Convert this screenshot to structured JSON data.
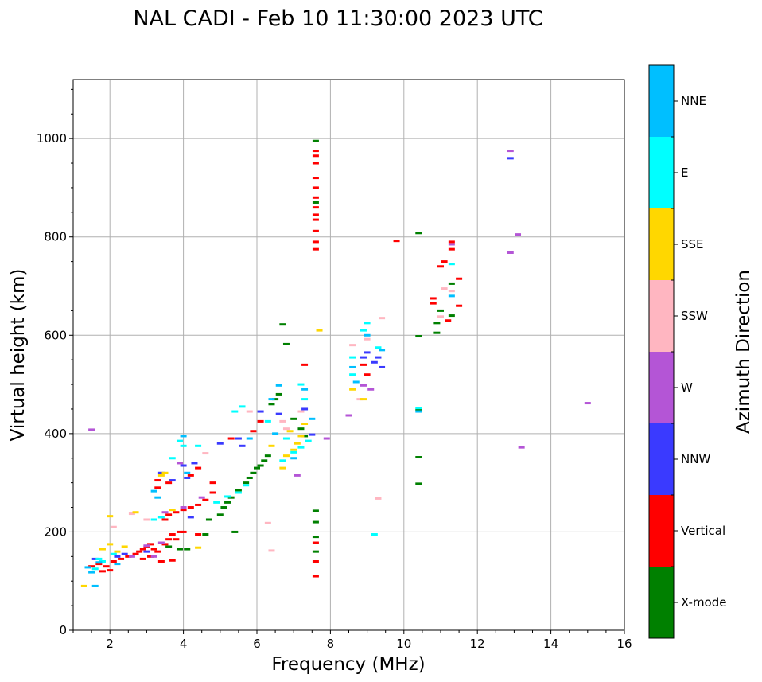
{
  "chart_data": {
    "type": "scatter",
    "title": "NAL CADI - Feb 10 11:30:00 2023 UTC",
    "xlabel": "Frequency (MHz)",
    "ylabel": "Virtual height (km)",
    "xlim": [
      1,
      16
    ],
    "ylim": [
      0,
      1120
    ],
    "xticks": [
      2,
      4,
      6,
      8,
      10,
      12,
      14,
      16
    ],
    "yticks": [
      0,
      200,
      400,
      600,
      800,
      1000
    ],
    "grid": true,
    "colorbar": {
      "label": "Azimuth Direction",
      "categories": [
        "X-mode",
        "Vertical",
        "NNW",
        "W",
        "SSW",
        "SSE",
        "E",
        "NNE"
      ],
      "colors": [
        "#008000",
        "#ff0000",
        "#3a3aff",
        "#b455d6",
        "#ffb6c1",
        "#ffd700",
        "#00ffff",
        "#00bfff"
      ]
    },
    "series": [
      {
        "name": "X-mode",
        "points": [
          [
            5.1,
            250
          ],
          [
            5.3,
            270
          ],
          [
            5.5,
            285
          ],
          [
            5.7,
            300
          ],
          [
            5.8,
            310
          ],
          [
            5.9,
            320
          ],
          [
            6.0,
            330
          ],
          [
            6.1,
            335
          ],
          [
            6.2,
            345
          ],
          [
            6.3,
            355
          ],
          [
            5.0,
            235
          ],
          [
            5.2,
            260
          ],
          [
            6.4,
            460
          ],
          [
            6.5,
            470
          ],
          [
            6.6,
            480
          ],
          [
            6.8,
            582
          ],
          [
            6.7,
            622
          ],
          [
            7.0,
            430
          ],
          [
            7.2,
            410
          ],
          [
            7.3,
            395
          ],
          [
            7.6,
            243
          ],
          [
            7.6,
            220
          ],
          [
            7.6,
            190
          ],
          [
            7.6,
            160
          ],
          [
            7.6,
            995
          ],
          [
            7.6,
            870
          ],
          [
            10.4,
            598
          ],
          [
            10.4,
            448
          ],
          [
            10.4,
            352
          ],
          [
            10.4,
            298
          ],
          [
            10.4,
            808
          ],
          [
            10.9,
            605
          ],
          [
            10.9,
            625
          ],
          [
            11.0,
            650
          ],
          [
            11.3,
            640
          ],
          [
            11.3,
            705
          ],
          [
            3.6,
            170
          ],
          [
            3.9,
            165
          ],
          [
            4.1,
            165
          ],
          [
            4.6,
            195
          ],
          [
            4.7,
            225
          ],
          [
            5.4,
            200
          ]
        ]
      },
      {
        "name": "Vertical",
        "points": [
          [
            1.5,
            130
          ],
          [
            1.7,
            135
          ],
          [
            1.9,
            130
          ],
          [
            2.1,
            140
          ],
          [
            2.3,
            145
          ],
          [
            2.5,
            150
          ],
          [
            2.7,
            155
          ],
          [
            2.8,
            160
          ],
          [
            2.9,
            165
          ],
          [
            3.0,
            170
          ],
          [
            3.1,
            175
          ],
          [
            3.2,
            165
          ],
          [
            3.3,
            160
          ],
          [
            3.1,
            150
          ],
          [
            2.9,
            145
          ],
          [
            3.5,
            175
          ],
          [
            3.6,
            185
          ],
          [
            3.7,
            195
          ],
          [
            3.8,
            185
          ],
          [
            3.9,
            200
          ],
          [
            4.0,
            200
          ],
          [
            3.5,
            225
          ],
          [
            3.6,
            235
          ],
          [
            3.8,
            240
          ],
          [
            4.0,
            245
          ],
          [
            4.2,
            250
          ],
          [
            4.4,
            255
          ],
          [
            4.6,
            265
          ],
          [
            4.8,
            280
          ],
          [
            3.3,
            290
          ],
          [
            3.3,
            305
          ],
          [
            3.6,
            300
          ],
          [
            4.2,
            315
          ],
          [
            4.4,
            330
          ],
          [
            4.8,
            300
          ],
          [
            5.3,
            390
          ],
          [
            5.9,
            405
          ],
          [
            6.1,
            425
          ],
          [
            7.3,
            540
          ],
          [
            7.6,
            775
          ],
          [
            7.6,
            790
          ],
          [
            7.6,
            812
          ],
          [
            7.6,
            835
          ],
          [
            7.6,
            845
          ],
          [
            7.6,
            860
          ],
          [
            7.6,
            880
          ],
          [
            7.6,
            900
          ],
          [
            7.6,
            920
          ],
          [
            7.6,
            950
          ],
          [
            7.6,
            965
          ],
          [
            7.6,
            975
          ],
          [
            7.6,
            178
          ],
          [
            7.6,
            140
          ],
          [
            7.6,
            110
          ],
          [
            9.8,
            792
          ],
          [
            8.9,
            540
          ],
          [
            9.0,
            520
          ],
          [
            10.8,
            665
          ],
          [
            10.8,
            675
          ],
          [
            11.0,
            740
          ],
          [
            11.1,
            750
          ],
          [
            11.3,
            775
          ],
          [
            11.3,
            790
          ],
          [
            11.5,
            715
          ],
          [
            11.5,
            660
          ],
          [
            11.2,
            630
          ],
          [
            4.4,
            195
          ],
          [
            3.4,
            140
          ],
          [
            3.7,
            142
          ],
          [
            2.0,
            122
          ],
          [
            1.8,
            120
          ]
        ]
      },
      {
        "name": "NNW",
        "points": [
          [
            1.6,
            145
          ],
          [
            2.2,
            150
          ],
          [
            2.4,
            155
          ],
          [
            3.0,
            160
          ],
          [
            3.7,
            305
          ],
          [
            4.1,
            310
          ],
          [
            4.3,
            340
          ],
          [
            4.0,
            335
          ],
          [
            5.5,
            390
          ],
          [
            5.6,
            375
          ],
          [
            6.1,
            445
          ],
          [
            6.6,
            440
          ],
          [
            7.5,
            398
          ],
          [
            7.3,
            450
          ],
          [
            8.9,
            555
          ],
          [
            9.0,
            565
          ],
          [
            9.3,
            555
          ],
          [
            9.2,
            545
          ],
          [
            9.4,
            535
          ],
          [
            12.9,
            960
          ],
          [
            3.4,
            320
          ],
          [
            4.2,
            230
          ],
          [
            5.0,
            380
          ]
        ]
      },
      {
        "name": "W",
        "points": [
          [
            1.5,
            408
          ],
          [
            2.6,
            150
          ],
          [
            3.2,
            150
          ],
          [
            3.4,
            178
          ],
          [
            4.0,
            250
          ],
          [
            4.5,
            270
          ],
          [
            7.1,
            315
          ],
          [
            7.9,
            390
          ],
          [
            8.5,
            437
          ],
          [
            8.9,
            498
          ],
          [
            9.1,
            490
          ],
          [
            12.9,
            975
          ],
          [
            12.9,
            768
          ],
          [
            13.1,
            805
          ],
          [
            13.2,
            372
          ],
          [
            15.0,
            462
          ],
          [
            11.3,
            785
          ],
          [
            3.5,
            240
          ],
          [
            3.9,
            340
          ],
          [
            3.0,
            172
          ]
        ]
      },
      {
        "name": "SSW",
        "points": [
          [
            2.1,
            210
          ],
          [
            2.6,
            237
          ],
          [
            3.0,
            225
          ],
          [
            6.3,
            218
          ],
          [
            6.4,
            162
          ],
          [
            6.8,
            410
          ],
          [
            8.6,
            580
          ],
          [
            8.8,
            470
          ],
          [
            9.0,
            592
          ],
          [
            9.4,
            635
          ],
          [
            11.1,
            695
          ],
          [
            11.0,
            638
          ],
          [
            11.3,
            690
          ],
          [
            9.3,
            268
          ],
          [
            4.6,
            360
          ],
          [
            6.7,
            425
          ],
          [
            7.2,
            445
          ],
          [
            5.8,
            445
          ]
        ]
      },
      {
        "name": "SSE",
        "points": [
          [
            1.3,
            90
          ],
          [
            1.8,
            165
          ],
          [
            2.0,
            175
          ],
          [
            2.2,
            160
          ],
          [
            2.4,
            170
          ],
          [
            2.0,
            232
          ],
          [
            2.7,
            240
          ],
          [
            3.4,
            315
          ],
          [
            3.5,
            320
          ],
          [
            6.4,
            375
          ],
          [
            6.8,
            355
          ],
          [
            6.7,
            330
          ],
          [
            7.1,
            380
          ],
          [
            7.2,
            395
          ],
          [
            7.3,
            420
          ],
          [
            7.7,
            610
          ],
          [
            8.6,
            490
          ],
          [
            8.9,
            470
          ],
          [
            3.7,
            245
          ],
          [
            4.4,
            168
          ],
          [
            6.9,
            405
          ],
          [
            7.0,
            367
          ]
        ]
      },
      {
        "name": "E",
        "points": [
          [
            1.6,
            125
          ],
          [
            1.8,
            140
          ],
          [
            2.1,
            155
          ],
          [
            3.2,
            225
          ],
          [
            3.4,
            230
          ],
          [
            3.7,
            350
          ],
          [
            3.9,
            385
          ],
          [
            4.0,
            375
          ],
          [
            4.4,
            375
          ],
          [
            4.9,
            260
          ],
          [
            5.2,
            272
          ],
          [
            5.5,
            280
          ],
          [
            5.7,
            295
          ],
          [
            5.4,
            445
          ],
          [
            5.6,
            455
          ],
          [
            6.3,
            425
          ],
          [
            6.7,
            345
          ],
          [
            6.8,
            390
          ],
          [
            7.0,
            362
          ],
          [
            7.2,
            372
          ],
          [
            7.4,
            385
          ],
          [
            7.3,
            470
          ],
          [
            7.2,
            500
          ],
          [
            8.6,
            555
          ],
          [
            8.6,
            520
          ],
          [
            8.9,
            610
          ],
          [
            9.0,
            625
          ],
          [
            9.3,
            575
          ],
          [
            9.2,
            195
          ],
          [
            10.4,
            452
          ],
          [
            11.3,
            745
          ],
          [
            1.7,
            145
          ]
        ]
      },
      {
        "name": "NNE",
        "points": [
          [
            1.4,
            128
          ],
          [
            1.5,
            118
          ],
          [
            1.7,
            138
          ],
          [
            2.2,
            135
          ],
          [
            3.2,
            283
          ],
          [
            3.3,
            270
          ],
          [
            4.0,
            395
          ],
          [
            5.8,
            390
          ],
          [
            6.4,
            470
          ],
          [
            6.6,
            498
          ],
          [
            6.5,
            400
          ],
          [
            7.0,
            350
          ],
          [
            7.3,
            490
          ],
          [
            7.5,
            430
          ],
          [
            8.6,
            535
          ],
          [
            8.7,
            505
          ],
          [
            9.0,
            600
          ],
          [
            9.4,
            570
          ],
          [
            10.4,
            445
          ],
          [
            11.3,
            680
          ],
          [
            4.1,
            320
          ],
          [
            1.6,
            90
          ]
        ]
      }
    ]
  }
}
